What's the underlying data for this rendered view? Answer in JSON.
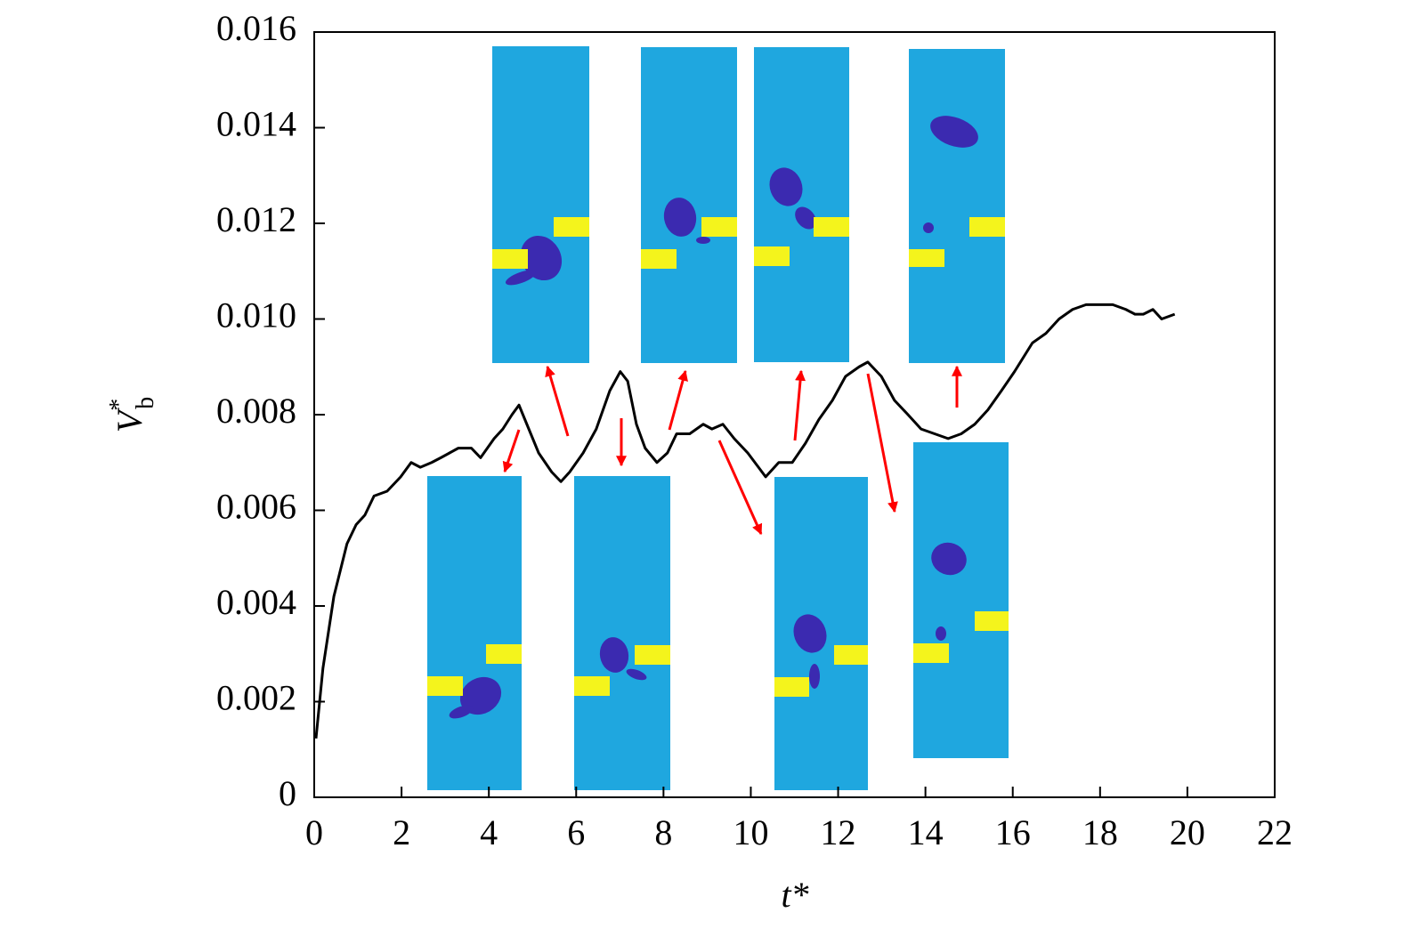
{
  "chart_data": {
    "type": "line",
    "xlabel": "t*",
    "ylabel": {
      "base": "V",
      "sup": "*",
      "sub": "b"
    },
    "x": [
      0.04,
      0.2,
      0.45,
      0.75,
      0.96,
      1.16,
      1.37,
      1.67,
      1.98,
      2.22,
      2.43,
      2.69,
      2.9,
      3.1,
      3.3,
      3.6,
      3.81,
      4.12,
      4.32,
      4.53,
      4.69,
      4.87,
      5.14,
      5.44,
      5.65,
      5.85,
      6.16,
      6.46,
      6.77,
      7.01,
      7.18,
      7.38,
      7.58,
      7.85,
      8.09,
      8.3,
      8.6,
      8.91,
      9.11,
      9.36,
      9.62,
      9.93,
      10.34,
      10.64,
      10.95,
      11.25,
      11.56,
      11.87,
      12.17,
      12.48,
      12.68,
      12.99,
      13.29,
      13.6,
      13.9,
      14.21,
      14.52,
      14.82,
      15.13,
      15.43,
      15.74,
      16.04,
      16.45,
      16.76,
      17.06,
      17.37,
      17.68,
      17.98,
      18.29,
      18.59,
      18.8,
      18.99,
      19.21,
      19.41,
      19.71
    ],
    "values": [
      0.00123,
      0.0027,
      0.0042,
      0.0053,
      0.0057,
      0.0059,
      0.0063,
      0.0064,
      0.0067,
      0.007,
      0.0069,
      0.007,
      0.0071,
      0.0072,
      0.0073,
      0.0073,
      0.0071,
      0.0075,
      0.0077,
      0.008,
      0.0082,
      0.0078,
      0.0072,
      0.0068,
      0.0066,
      0.0068,
      0.0072,
      0.0077,
      0.0085,
      0.0089,
      0.0087,
      0.0078,
      0.0073,
      0.007,
      0.0072,
      0.0076,
      0.0076,
      0.0078,
      0.0077,
      0.0078,
      0.0075,
      0.0072,
      0.0067,
      0.007,
      0.007,
      0.0074,
      0.0079,
      0.0083,
      0.0088,
      0.009,
      0.0091,
      0.0088,
      0.0083,
      0.008,
      0.0077,
      0.0076,
      0.0075,
      0.0076,
      0.0078,
      0.0081,
      0.0085,
      0.0089,
      0.0095,
      0.0097,
      0.01,
      0.0102,
      0.0103,
      0.0103,
      0.0103,
      0.0102,
      0.0101,
      0.0101,
      0.0102,
      0.01,
      0.0101
    ],
    "color": "#000000",
    "xlim": [
      0,
      22
    ],
    "xticks": [
      0,
      2,
      4,
      6,
      8,
      10,
      12,
      14,
      16,
      18,
      20,
      22
    ],
    "ylim": [
      0,
      0.016
    ],
    "yticks": [
      0,
      0.002,
      0.004,
      0.006,
      0.008,
      {
        "value": 0.01,
        "label": "0.010"
      },
      0.012,
      0.014,
      0.016
    ],
    "grid": false
  }
}
